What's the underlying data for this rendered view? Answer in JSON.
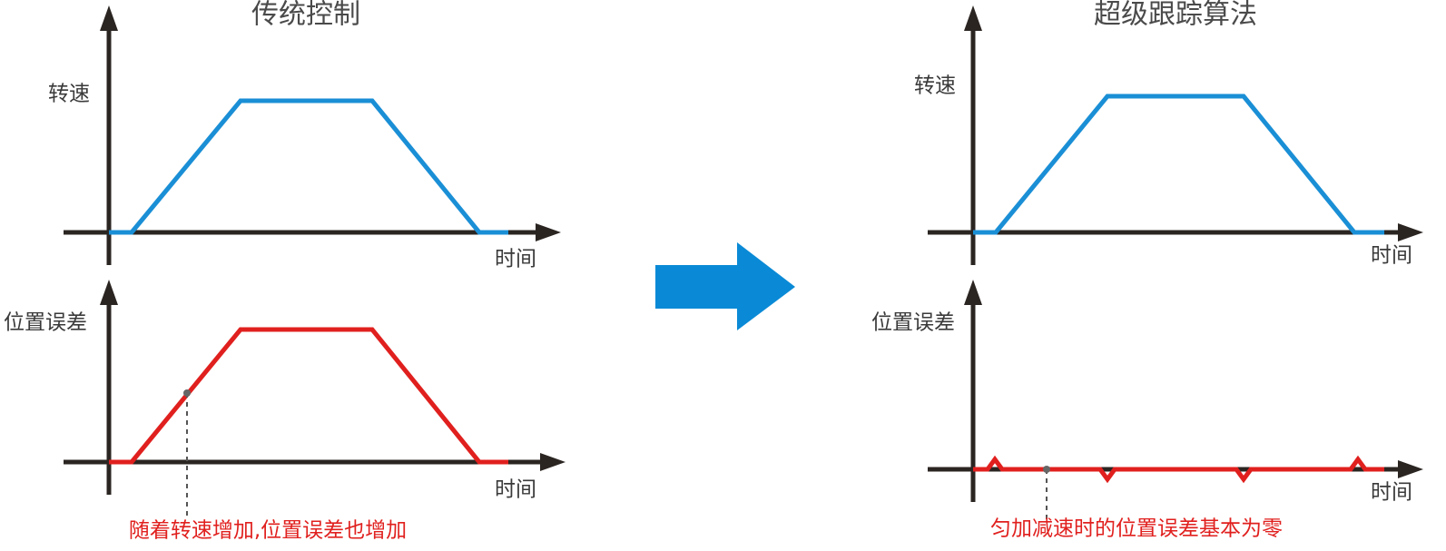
{
  "left": {
    "title": "传统控制",
    "speed_label": "转速",
    "speed_x_label": "时间",
    "error_label": "位置误差",
    "error_x_label": "时间",
    "caption": "随着转速增加,位置误差也增加"
  },
  "right": {
    "title": "超级跟踪算法",
    "speed_label": "转速",
    "speed_x_label": "时间",
    "error_label": "位置误差",
    "error_x_label": "时间",
    "caption": "匀加减速时的位置误差基本为零"
  }
}
